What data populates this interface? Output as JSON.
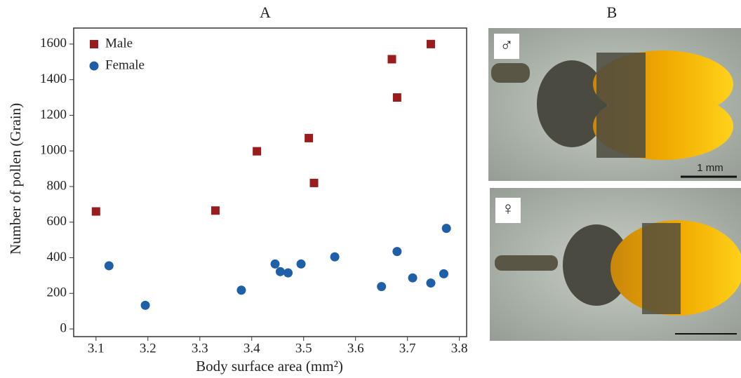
{
  "chart_data": {
    "type": "scatter",
    "title": "A",
    "x_label": "Body surface area (mm²)",
    "y_label": "Number of pollen (Grain)",
    "xlim": [
      3.057,
      3.814
    ],
    "ylim": [
      -43,
      1690
    ],
    "xticks": [
      3.1,
      3.2,
      3.3,
      3.4,
      3.5,
      3.6,
      3.7,
      3.8
    ],
    "yticks": [
      0,
      200,
      400,
      600,
      800,
      1000,
      1200,
      1400,
      1600
    ],
    "legend": "upper left",
    "series": [
      {
        "name": "Male",
        "color": "#9b1c1c",
        "marker": "square",
        "x": [
          3.1,
          3.33,
          3.41,
          3.51,
          3.52,
          3.67,
          3.68,
          3.745
        ],
        "values": [
          660,
          665,
          998,
          1072,
          820,
          1515,
          1300,
          1600
        ]
      },
      {
        "name": "Female",
        "color": "#1f5fa8",
        "marker": "circle",
        "x": [
          3.125,
          3.195,
          3.38,
          3.445,
          3.455,
          3.47,
          3.495,
          3.56,
          3.65,
          3.68,
          3.71,
          3.745,
          3.77,
          3.775
        ],
        "values": [
          355,
          133,
          218,
          365,
          322,
          315,
          365,
          405,
          238,
          435,
          287,
          258,
          310,
          565
        ]
      }
    ]
  },
  "photos": {
    "title": "B",
    "top_label": "♂",
    "bottom_label": "♀",
    "scale_label": "1 mm"
  }
}
